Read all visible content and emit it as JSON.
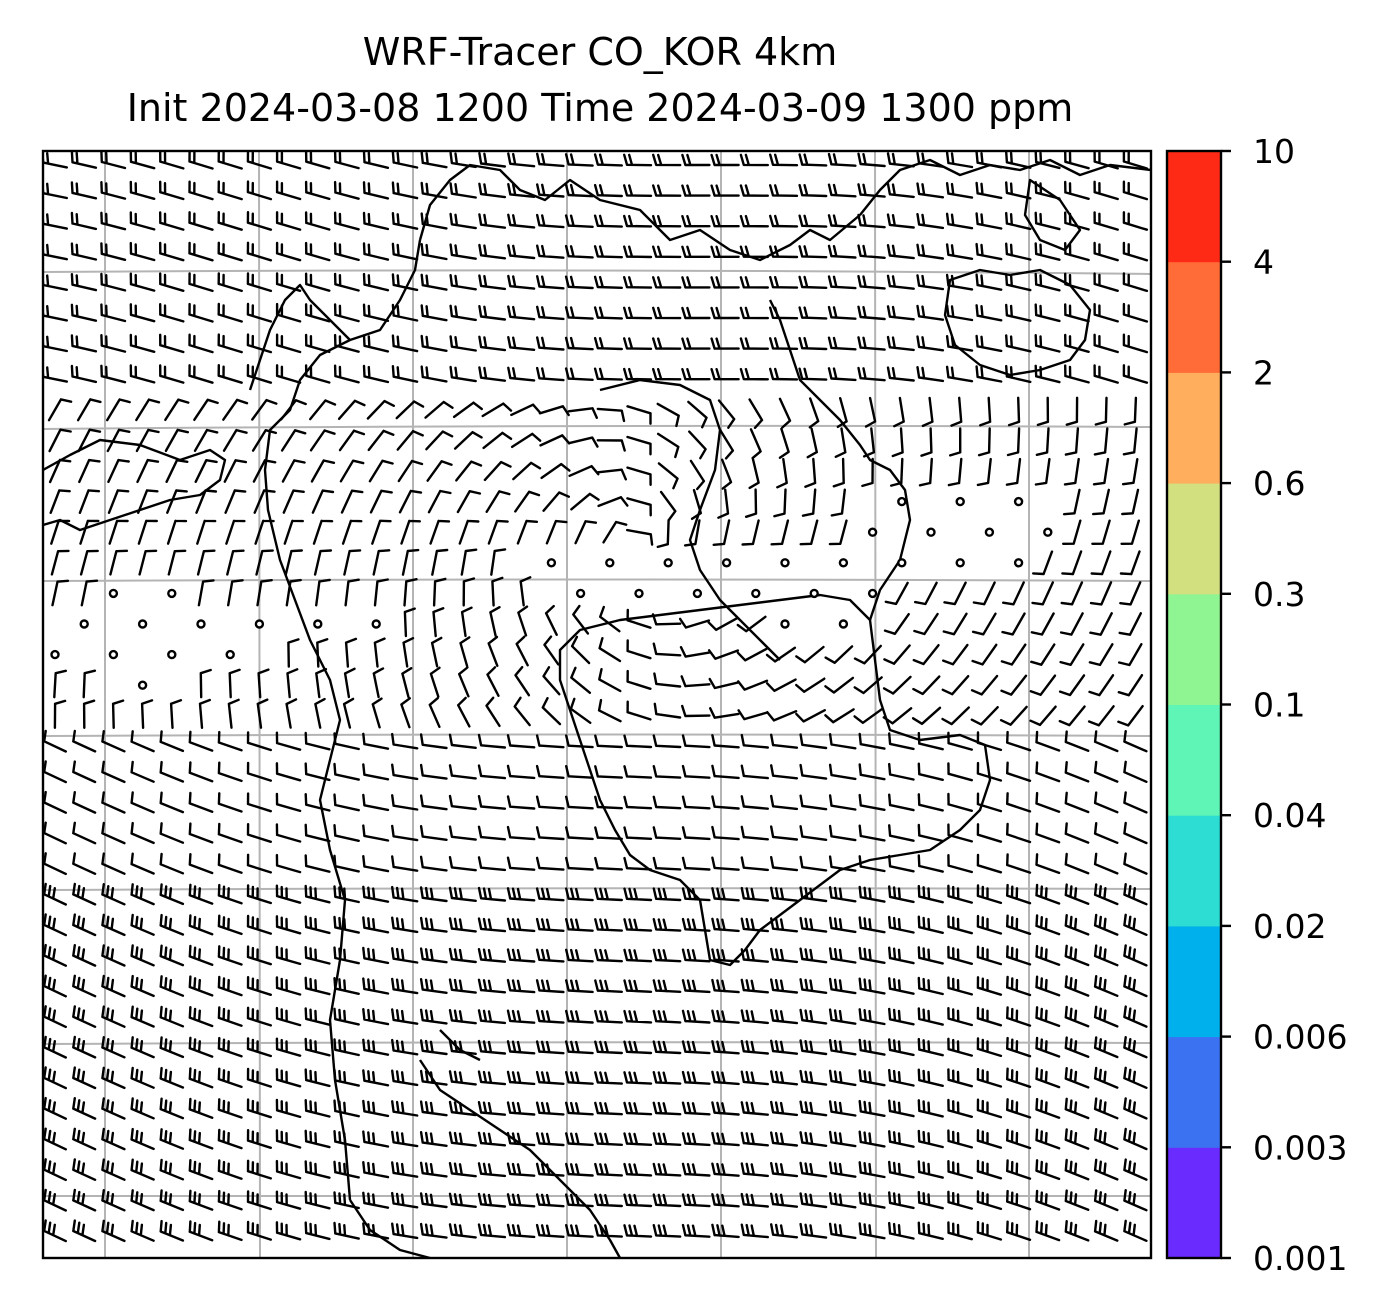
{
  "title": {
    "line1": "WRF-Tracer CO_KOR 4km",
    "line2": "Init 2024-03-08 1200 Time 2024-03-09 1300 ppm"
  },
  "colorbar": {
    "unit": "ppm",
    "levels": [
      {
        "label": "0.001",
        "color": "#6a2bff"
      },
      {
        "label": "0.003",
        "color": "#3b72f2"
      },
      {
        "label": "0.006",
        "color": "#00b0ec"
      },
      {
        "label": "0.02",
        "color": "#2ddcd3"
      },
      {
        "label": "0.04",
        "color": "#5ff5b6"
      },
      {
        "label": "0.1",
        "color": "#8ff592"
      },
      {
        "label": "0.3",
        "color": "#d2e080"
      },
      {
        "label": "0.6",
        "color": "#ffae5e"
      },
      {
        "label": "2",
        "color": "#ff6c38"
      },
      {
        "label": "4",
        "color": "#ff2a16"
      },
      {
        "label": "10",
        "color": null
      }
    ]
  },
  "map": {
    "features": [
      "wind-barbs",
      "coastlines",
      "lat-lon-gridlines",
      "calm-wind-circles"
    ],
    "gridline_color": "#b4b4b4",
    "barb_color": "#000000"
  }
}
